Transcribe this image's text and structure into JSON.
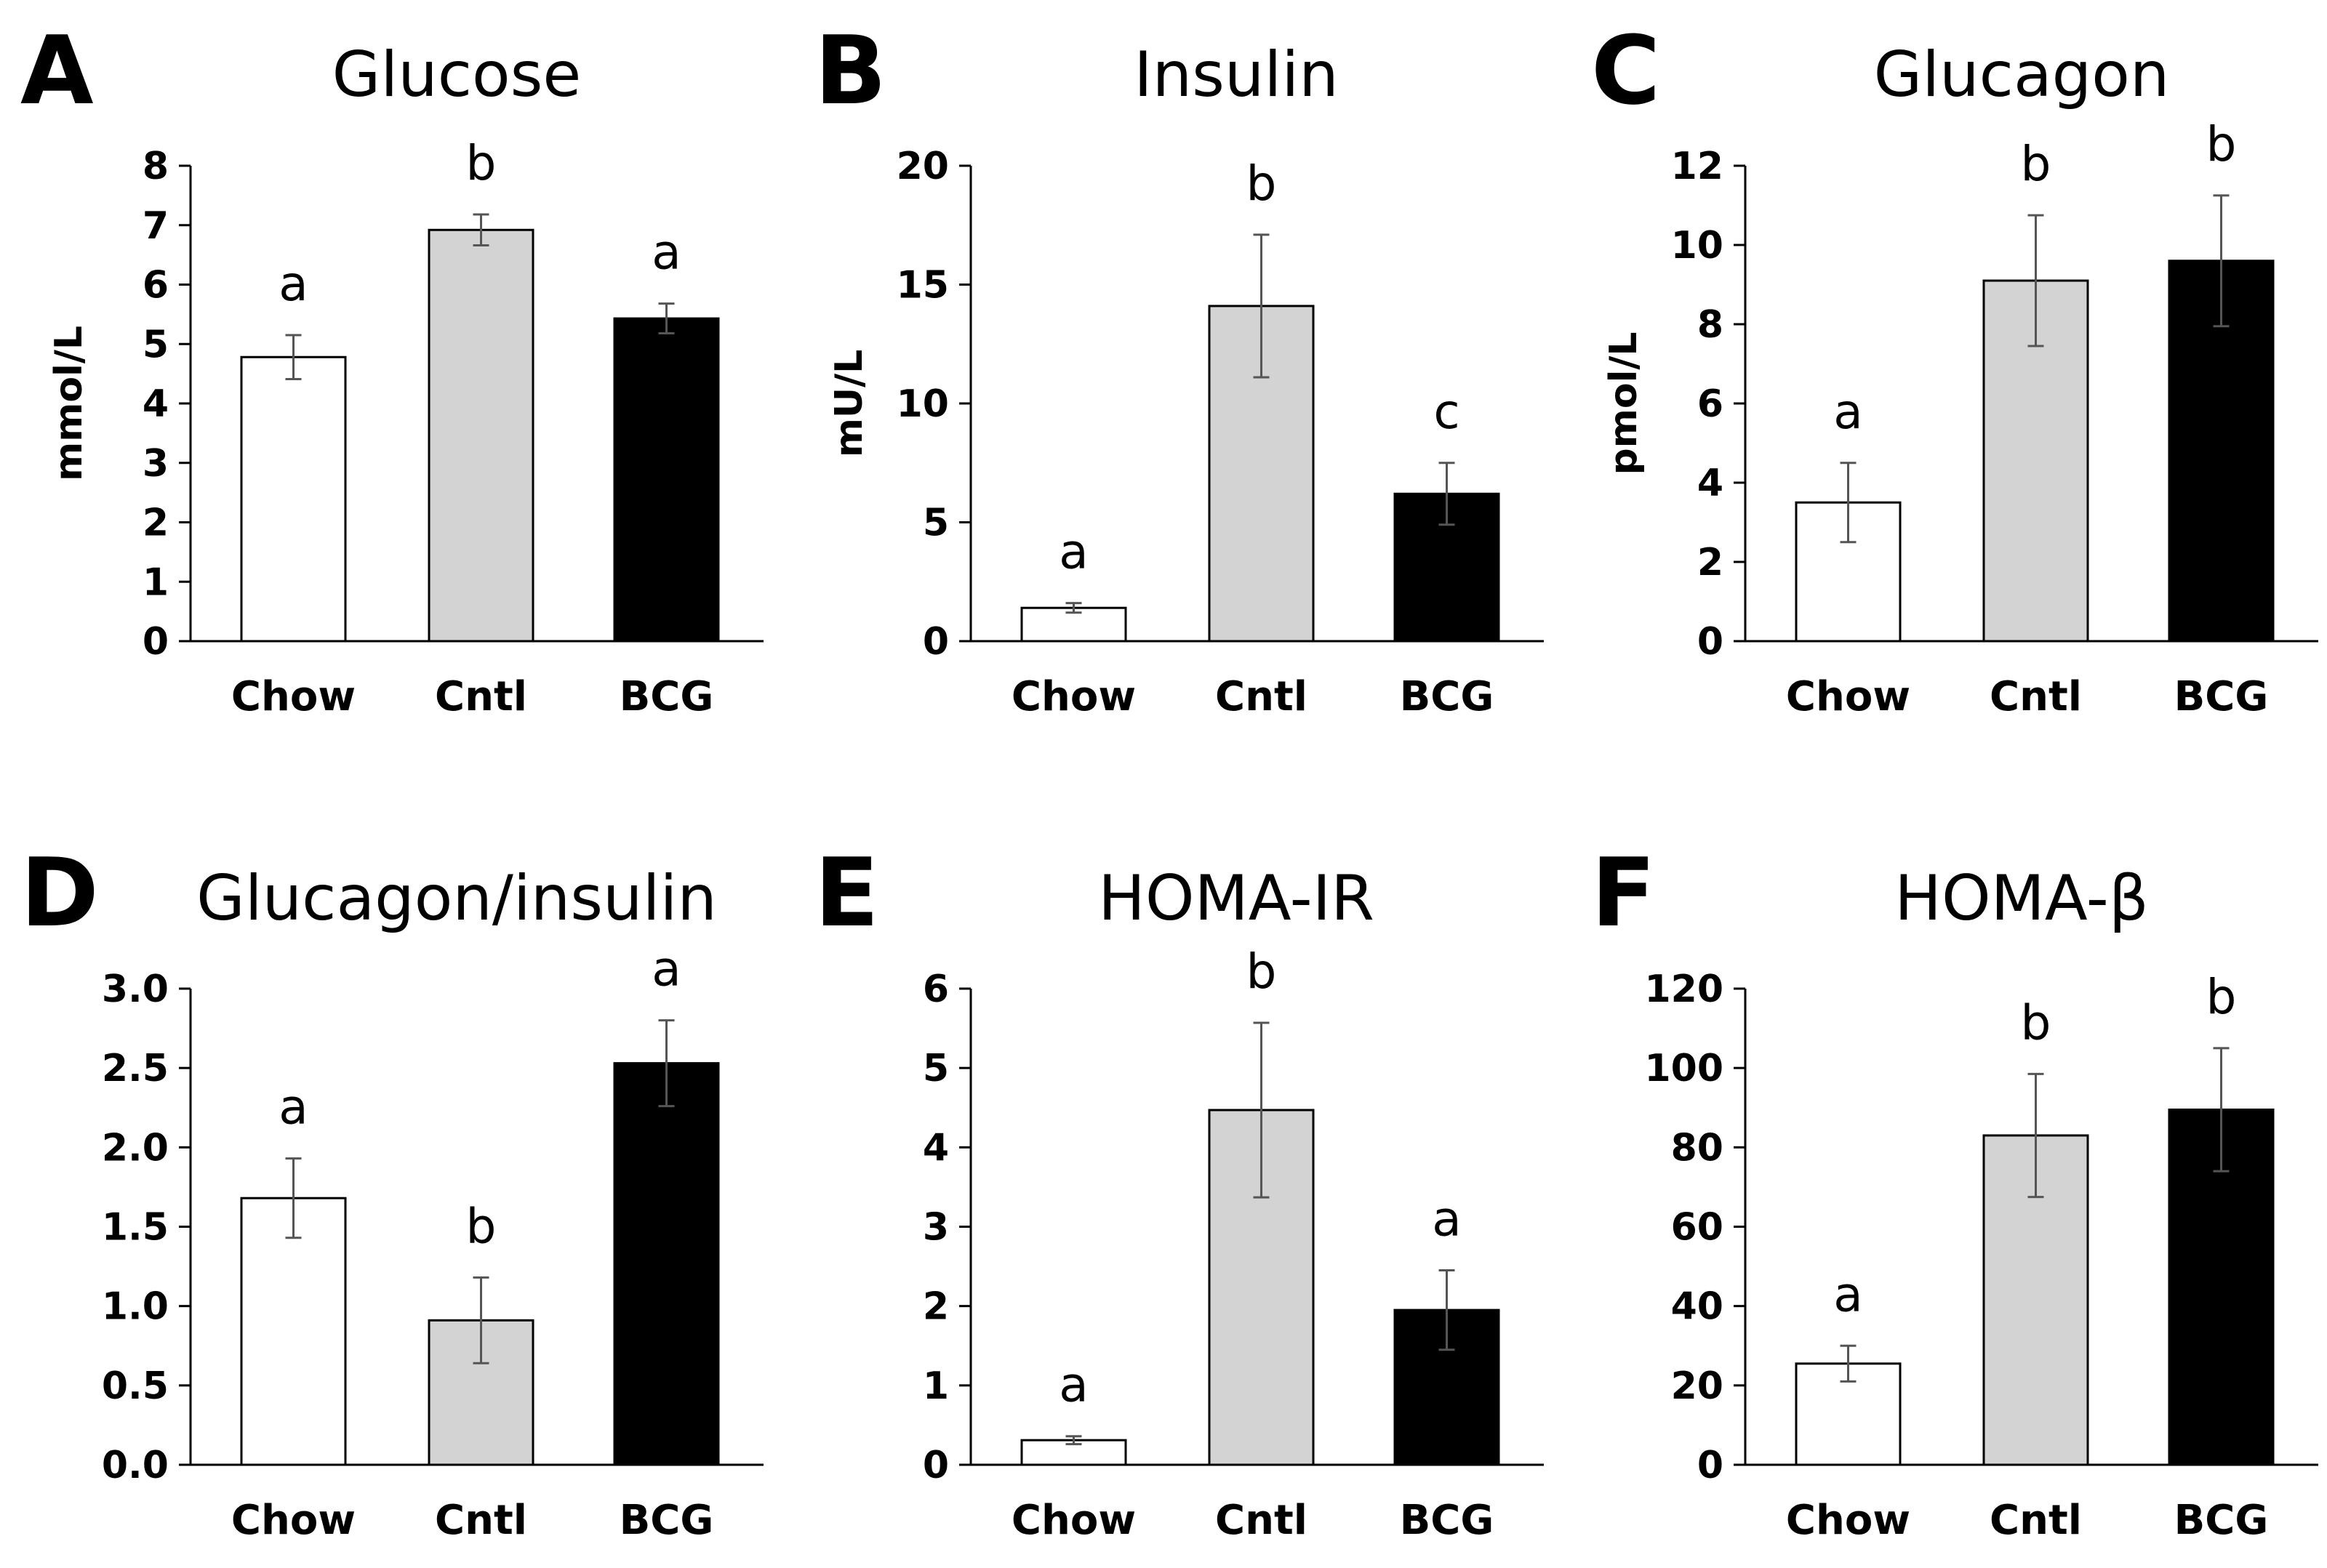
{
  "colors": {
    "Chow": "#ffffff",
    "Cntl": "#d3d3d3",
    "BCG": "#000000",
    "error_bar": "#555555",
    "axis": "#000000"
  },
  "chart_data": [
    {
      "panel": "A",
      "type": "bar",
      "title": "Glucose",
      "ylabel": "mmol/L",
      "xlabel": "",
      "categories": [
        "Chow",
        "Cntl",
        "BCG"
      ],
      "values": [
        4.78,
        6.92,
        5.43
      ],
      "errors": [
        0.37,
        0.26,
        0.25
      ],
      "significance": [
        "a",
        "b",
        "a"
      ],
      "ylim": [
        0,
        8
      ],
      "yticks": [
        0,
        1,
        2,
        3,
        4,
        5,
        6,
        7,
        8
      ],
      "tick_labels": [
        "0",
        "1",
        "2",
        "3",
        "4",
        "5",
        "6",
        "7",
        "8"
      ]
    },
    {
      "panel": "B",
      "type": "bar",
      "title": "Insulin",
      "ylabel": "mU/L",
      "xlabel": "",
      "categories": [
        "Chow",
        "Cntl",
        "BCG"
      ],
      "values": [
        1.4,
        14.1,
        6.2
      ],
      "errors": [
        0.2,
        3.0,
        1.3
      ],
      "significance": [
        "a",
        "b",
        "c"
      ],
      "ylim": [
        0,
        20
      ],
      "yticks": [
        0,
        5,
        10,
        15,
        20
      ],
      "tick_labels": [
        "0",
        "5",
        "10",
        "15",
        "20"
      ]
    },
    {
      "panel": "C",
      "type": "bar",
      "title": "Glucagon",
      "ylabel": "pmol/L",
      "xlabel": "",
      "categories": [
        "Chow",
        "Cntl",
        "BCG"
      ],
      "values": [
        3.5,
        9.1,
        9.6
      ],
      "errors": [
        1.0,
        1.65,
        1.65
      ],
      "significance": [
        "a",
        "b",
        "b"
      ],
      "ylim": [
        0,
        12
      ],
      "yticks": [
        0,
        2,
        4,
        6,
        8,
        10,
        12
      ],
      "tick_labels": [
        "0",
        "2",
        "4",
        "6",
        "8",
        "10",
        "12"
      ]
    },
    {
      "panel": "D",
      "type": "bar",
      "title": "Glucagon/insulin",
      "ylabel": "",
      "xlabel": "",
      "categories": [
        "Chow",
        "Cntl",
        "BCG"
      ],
      "values": [
        1.68,
        0.91,
        2.53
      ],
      "errors": [
        0.25,
        0.27,
        0.27
      ],
      "significance": [
        "a",
        "b",
        "a"
      ],
      "ylim": [
        0,
        3
      ],
      "yticks": [
        0,
        0.5,
        1,
        1.5,
        2,
        2.5,
        3
      ],
      "tick_labels": [
        "0.0",
        "0.5",
        "1.0",
        "1.5",
        "2.0",
        "2.5",
        "3.0"
      ]
    },
    {
      "panel": "E",
      "type": "bar",
      "title": "HOMA-IR",
      "ylabel": "",
      "xlabel": "",
      "categories": [
        "Chow",
        "Cntl",
        "BCG"
      ],
      "values": [
        0.31,
        4.47,
        1.95
      ],
      "errors": [
        0.05,
        1.1,
        0.5
      ],
      "significance": [
        "a",
        "b",
        "a"
      ],
      "ylim": [
        0,
        6
      ],
      "yticks": [
        0,
        1,
        2,
        3,
        4,
        5,
        6
      ],
      "tick_labels": [
        "0",
        "1",
        "2",
        "3",
        "4",
        "5",
        "6"
      ]
    },
    {
      "panel": "F",
      "type": "bar",
      "title": "HOMA-β",
      "ylabel": "",
      "xlabel": "",
      "categories": [
        "Chow",
        "Cntl",
        "BCG"
      ],
      "values": [
        25.5,
        83.0,
        89.5
      ],
      "errors": [
        4.5,
        15.5,
        15.5
      ],
      "significance": [
        "a",
        "b",
        "b"
      ],
      "ylim": [
        0,
        120
      ],
      "yticks": [
        0,
        20,
        40,
        60,
        80,
        100,
        120
      ],
      "tick_labels": [
        "0",
        "20",
        "40",
        "60",
        "80",
        "100",
        "120"
      ]
    }
  ]
}
